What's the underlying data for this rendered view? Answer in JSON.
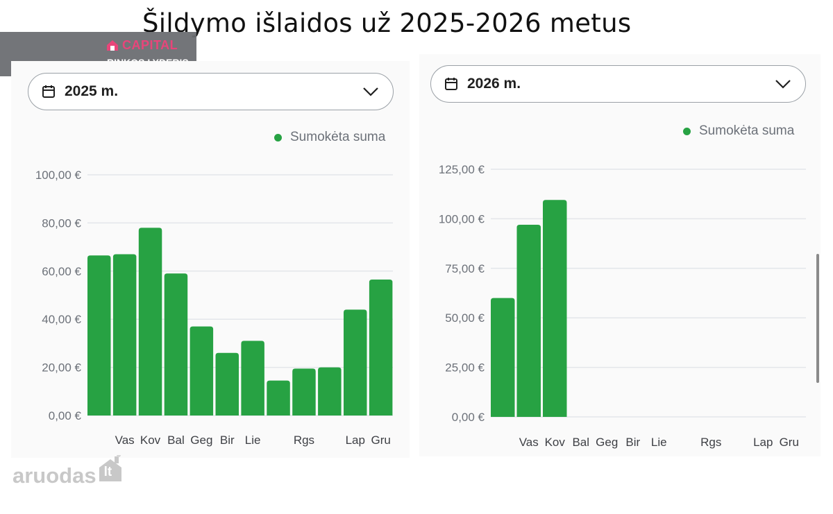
{
  "title": "Šildymo išlaidos už 2025-2026 metus",
  "brand": {
    "logo_text": "CAPITAL",
    "tagline": "RINKOS LYDERIS"
  },
  "watermark": {
    "text": "aruodas",
    "suffix": "lt"
  },
  "colors": {
    "bar": "#27a243",
    "grid": "#e3e6ea",
    "tick": "#6c7179",
    "axis_text": "#3d3f44"
  },
  "icons": {
    "calendar": "calendar-icon",
    "chevron": "chevron-down-icon"
  },
  "chart_data": [
    {
      "type": "bar",
      "selector_label": "2025 m.",
      "legend": "Sumokėta suma",
      "series": [
        {
          "name": "Sumokėta suma",
          "values": [
            66.5,
            67,
            78,
            59,
            37,
            26,
            31,
            14.5,
            19.5,
            20,
            44,
            56.5
          ]
        }
      ],
      "categories": [
        "",
        "Vas",
        "Kov",
        "Bal",
        "Geg",
        "Bir",
        "Lie",
        "",
        "Rgs",
        "",
        "Lap",
        "Gru"
      ],
      "y_ticks": [
        "0,00 €",
        "20,00 €",
        "40,00 €",
        "60,00 €",
        "80,00 €",
        "100,00 €"
      ],
      "ylim": [
        0,
        100
      ],
      "grid": true,
      "legend_position": "top-right"
    },
    {
      "type": "bar",
      "selector_label": "2026 m.",
      "legend": "Sumokėta suma",
      "series": [
        {
          "name": "Sumokėta suma",
          "values": [
            60,
            97,
            109.5,
            null,
            null,
            null,
            null,
            null,
            null,
            null,
            null,
            null
          ]
        }
      ],
      "categories": [
        "",
        "Vas",
        "Kov",
        "Bal",
        "Geg",
        "Bir",
        "Lie",
        "",
        "Rgs",
        "",
        "Lap",
        "Gru"
      ],
      "y_ticks": [
        "0,00 €",
        "25,00 €",
        "50,00 €",
        "75,00 €",
        "100,00 €",
        "125,00 €"
      ],
      "ylim": [
        0,
        125
      ],
      "grid": true,
      "legend_position": "top-right"
    }
  ]
}
